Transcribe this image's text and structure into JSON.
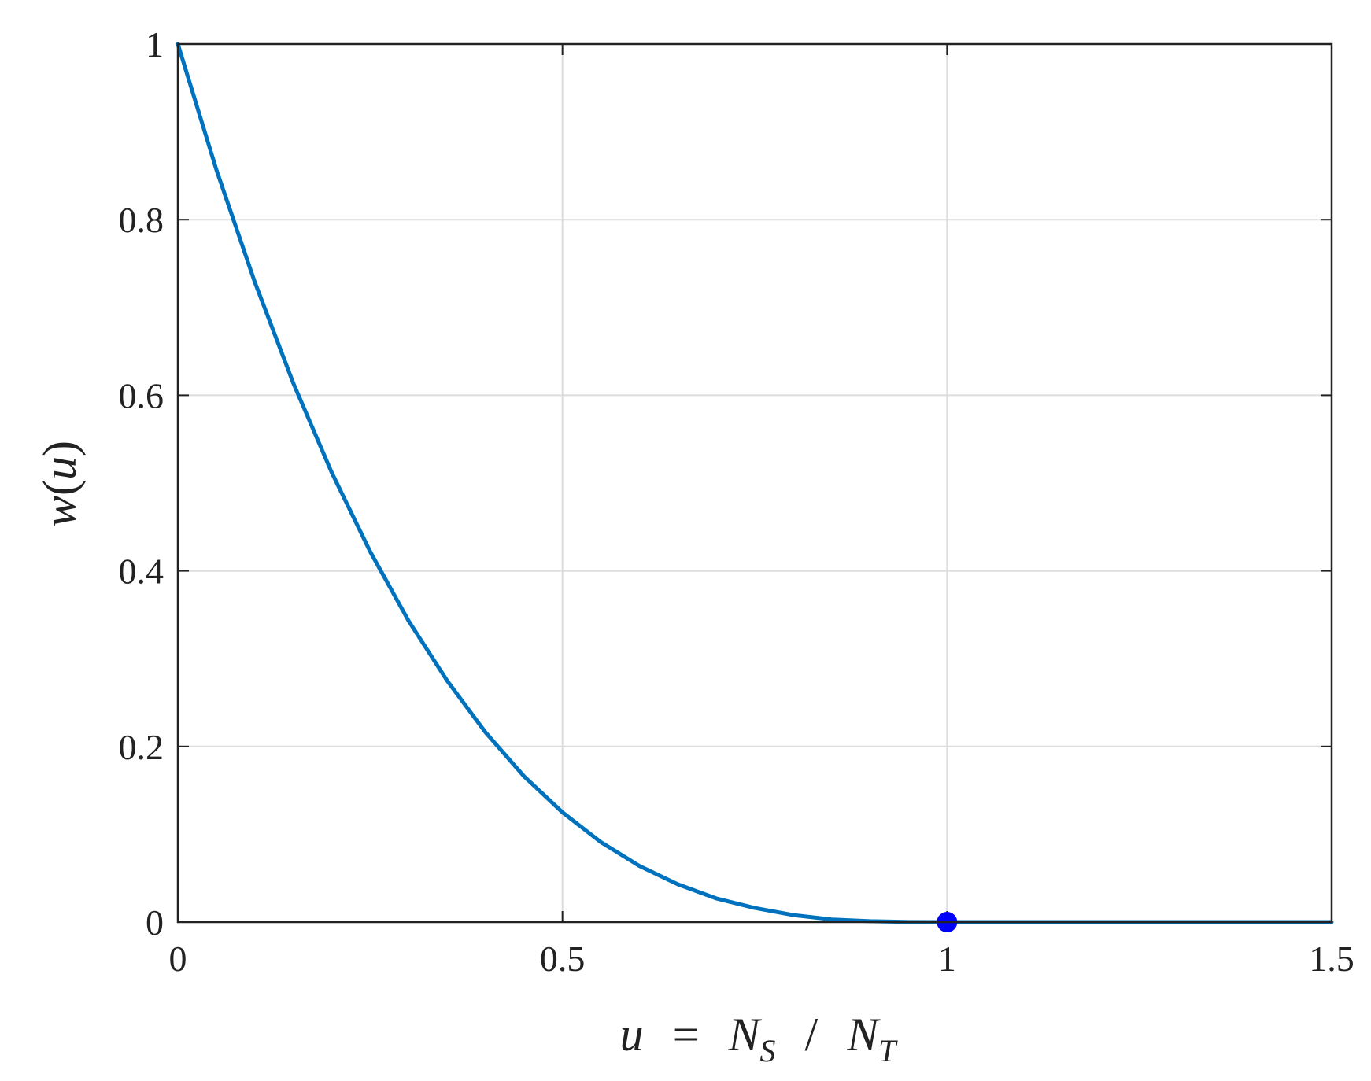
{
  "chart_data": {
    "type": "line",
    "title": "",
    "xlabel": "u = N_S / N_T",
    "ylabel": "w(u)",
    "xlabel_parts": {
      "var": "u",
      "eq": "=",
      "num_base": "N",
      "num_sub": "S",
      "slash": "/",
      "den_base": "N",
      "den_sub": "T"
    },
    "ylabel_parts": {
      "func": "w",
      "open": "(",
      "var": "u",
      "close": ")"
    },
    "xlim": [
      0,
      1.5
    ],
    "ylim": [
      0,
      1
    ],
    "xticks": [
      0,
      0.5,
      1,
      1.5
    ],
    "xtick_labels": [
      "0",
      "0.5",
      "1",
      "1.5"
    ],
    "yticks": [
      0,
      0.2,
      0.4,
      0.6,
      0.8,
      1
    ],
    "ytick_labels": [
      "0",
      "0.2",
      "0.4",
      "0.6",
      "0.8",
      "1"
    ],
    "grid": true,
    "series": [
      {
        "color": "#0072BD",
        "x": [
          0,
          0.05,
          0.1,
          0.15,
          0.2,
          0.25,
          0.3,
          0.35,
          0.4,
          0.45,
          0.5,
          0.55,
          0.6,
          0.65,
          0.7,
          0.75,
          0.8,
          0.85,
          0.9,
          0.95,
          1.0,
          1.1,
          1.2,
          1.3,
          1.4,
          1.5
        ],
        "y": [
          1.0,
          0.857,
          0.729,
          0.614,
          0.512,
          0.422,
          0.343,
          0.275,
          0.216,
          0.166,
          0.125,
          0.091,
          0.064,
          0.043,
          0.027,
          0.016,
          0.008,
          0.003,
          0.001,
          0.0001,
          0,
          0,
          0,
          0,
          0,
          0
        ]
      }
    ],
    "markers": [
      {
        "x": 1,
        "y": 0,
        "color": "#0000FF"
      }
    ]
  }
}
